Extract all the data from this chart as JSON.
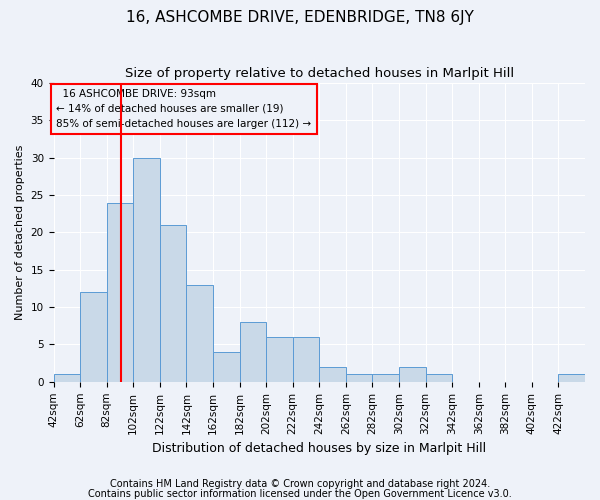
{
  "title": "16, ASHCOMBE DRIVE, EDENBRIDGE, TN8 6JY",
  "subtitle": "Size of property relative to detached houses in Marlpit Hill",
  "xlabel": "Distribution of detached houses by size in Marlpit Hill",
  "ylabel": "Number of detached properties",
  "footnote1": "Contains HM Land Registry data © Crown copyright and database right 2024.",
  "footnote2": "Contains public sector information licensed under the Open Government Licence v3.0.",
  "annotation_line1": "16 ASHCOMBE DRIVE: 93sqm",
  "annotation_line2": "← 14% of detached houses are smaller (19)",
  "annotation_line3": "85% of semi-detached houses are larger (112) →",
  "bar_color": "#c9d9e8",
  "bar_edge_color": "#5b9bd5",
  "redline_x": 93,
  "bin_edges": [
    42,
    62,
    82,
    102,
    122,
    142,
    162,
    182,
    202,
    222,
    242,
    262,
    282,
    302,
    322,
    342,
    362,
    382,
    402,
    422,
    442
  ],
  "bar_heights": [
    1,
    12,
    24,
    30,
    21,
    13,
    4,
    8,
    6,
    6,
    2,
    1,
    1,
    2,
    1,
    0,
    0,
    0,
    0,
    1
  ],
  "ylim": [
    0,
    40
  ],
  "yticks": [
    0,
    5,
    10,
    15,
    20,
    25,
    30,
    35,
    40
  ],
  "background_color": "#eef2f9",
  "grid_color": "#ffffff",
  "title_fontsize": 11,
  "subtitle_fontsize": 9.5,
  "xlabel_fontsize": 9,
  "ylabel_fontsize": 8,
  "tick_fontsize": 7.5,
  "footnote_fontsize": 7
}
